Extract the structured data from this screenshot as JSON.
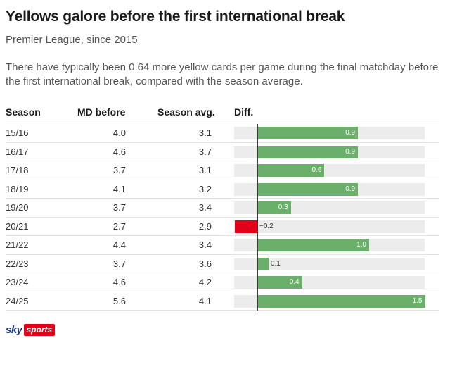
{
  "header": {
    "title": "Yellows galore before the first international break",
    "subtitle": "Premier League, since 2015",
    "description": "There have typically been 0.64 more yellow cards per game during the final matchday before the first international break, compared with the season average."
  },
  "columns": {
    "season": "Season",
    "md_before": "MD before",
    "season_avg": "Season avg.",
    "diff": "Diff."
  },
  "chart_data": {
    "type": "bar",
    "orientation": "horizontal",
    "title": "Yellows galore before the first international break",
    "subtitle": "Premier League, since 2015",
    "categories": [
      "15/16",
      "16/17",
      "17/18",
      "18/19",
      "19/20",
      "20/21",
      "21/22",
      "22/23",
      "23/24",
      "24/25"
    ],
    "md_before": [
      "4.0",
      "4.6",
      "3.7",
      "4.1",
      "3.7",
      "2.7",
      "4.4",
      "3.7",
      "4.6",
      "5.6"
    ],
    "season_avg": [
      "3.1",
      "3.7",
      "3.1",
      "3.2",
      "3.4",
      "2.9",
      "3.4",
      "3.6",
      "4.2",
      "4.1"
    ],
    "values": [
      0.9,
      0.9,
      0.6,
      0.9,
      0.3,
      -0.2,
      1.0,
      0.1,
      0.4,
      1.5
    ],
    "value_labels": [
      "0.9",
      "0.9",
      "0.6",
      "0.9",
      "0.3",
      "−0.2",
      "1.0",
      "0.1",
      "0.4",
      "1.5"
    ],
    "xlim": [
      -0.2,
      1.5
    ],
    "colors": {
      "positive": "#6ab06a",
      "negative": "#e3001b",
      "track": "#ececec"
    }
  },
  "footer": {
    "logo_sky": "sky",
    "logo_sports": "sports"
  }
}
